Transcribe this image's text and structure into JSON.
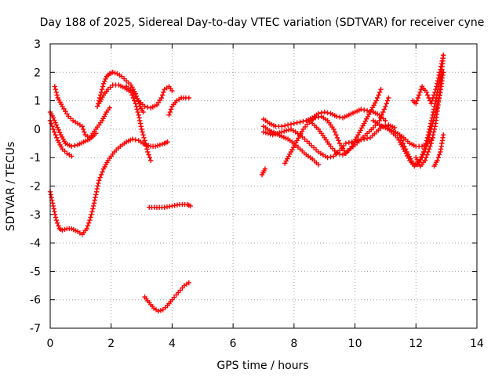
{
  "chart_data": {
    "type": "scatter",
    "title": "Day 188 of 2025, Sidereal Day-to-day VTEC variation (SDTVAR) for receiver cyne",
    "xlabel": "GPS time / hours",
    "ylabel": "SDTVAR / TECUs",
    "xlim": [
      0,
      14
    ],
    "ylim": [
      -7,
      3
    ],
    "xticks": [
      "0",
      "2",
      "4",
      "6",
      "8",
      "10",
      "12",
      "14"
    ],
    "yticks": [
      "-7",
      "-6",
      "-5",
      "-4",
      "-3",
      "-2",
      "-1",
      "0",
      "1",
      "2",
      "3"
    ],
    "grid": true,
    "marker": "+",
    "color": "#ff0000",
    "series": [
      {
        "x": [
          0.15,
          0.25,
          0.4,
          0.6,
          0.75,
          0.9,
          1.05,
          1.15,
          1.3,
          1.5,
          1.7,
          1.85,
          1.95
        ],
        "y": [
          1.5,
          1.1,
          0.8,
          0.45,
          0.3,
          0.2,
          0.1,
          -0.2,
          -0.3,
          0.0,
          0.3,
          0.6,
          0.75
        ]
      },
      {
        "x": [
          0.0,
          0.1,
          0.2,
          0.35,
          0.5,
          0.7,
          0.9,
          1.1,
          1.3,
          1.4,
          1.5
        ],
        "y": [
          0.6,
          0.4,
          0.15,
          -0.2,
          -0.5,
          -0.6,
          -0.55,
          -0.45,
          -0.35,
          -0.25,
          -0.15
        ]
      },
      {
        "x": [
          0.0,
          0.1,
          0.25,
          0.4,
          0.55,
          0.7
        ],
        "y": [
          0.3,
          0.0,
          -0.4,
          -0.7,
          -0.85,
          -0.95
        ]
      },
      {
        "x": [
          0.0,
          0.1,
          0.2,
          0.3,
          0.4,
          0.55,
          0.7,
          0.9,
          1.05,
          1.2,
          1.3,
          1.4,
          1.5,
          1.6,
          1.75,
          1.9,
          2.1,
          2.3,
          2.5,
          2.7,
          2.9,
          3.05,
          3.15,
          3.3,
          3.45,
          3.6,
          3.75,
          3.85
        ],
        "y": [
          -2.2,
          -2.7,
          -3.2,
          -3.5,
          -3.55,
          -3.5,
          -3.5,
          -3.6,
          -3.7,
          -3.5,
          -3.2,
          -2.8,
          -2.3,
          -1.8,
          -1.4,
          -1.1,
          -0.8,
          -0.6,
          -0.45,
          -0.35,
          -0.4,
          -0.5,
          -0.55,
          -0.6,
          -0.6,
          -0.55,
          -0.5,
          -0.45
        ]
      },
      {
        "x": [
          1.55,
          1.65,
          1.75,
          1.85,
          1.95,
          2.05,
          2.2,
          2.35,
          2.5,
          2.65,
          2.8,
          2.95,
          3.05
        ],
        "y": [
          0.8,
          1.2,
          1.6,
          1.85,
          1.95,
          2.0,
          1.95,
          1.85,
          1.7,
          1.55,
          1.25,
          0.8,
          0.6
        ]
      },
      {
        "x": [
          1.6,
          1.75,
          1.9,
          2.05,
          2.25,
          2.45,
          2.65,
          2.8,
          2.9,
          3.0,
          3.1,
          3.2,
          3.3
        ],
        "y": [
          0.9,
          1.2,
          1.4,
          1.55,
          1.55,
          1.45,
          1.3,
          0.9,
          0.5,
          0.0,
          -0.4,
          -0.8,
          -1.1
        ]
      },
      {
        "x": [
          2.5,
          2.7,
          2.9,
          3.1,
          3.3,
          3.5,
          3.65,
          3.75,
          3.9,
          4.0
        ],
        "y": [
          1.5,
          1.3,
          1.0,
          0.8,
          0.75,
          0.85,
          1.1,
          1.4,
          1.5,
          1.35
        ]
      },
      {
        "x": [
          3.9,
          4.0,
          4.15,
          4.3,
          4.45,
          4.55
        ],
        "y": [
          0.5,
          0.8,
          1.0,
          1.1,
          1.1,
          1.1
        ]
      },
      {
        "x": [
          3.25,
          3.5,
          3.75,
          4.0,
          4.25,
          4.5,
          4.6
        ],
        "y": [
          -2.75,
          -2.75,
          -2.75,
          -2.7,
          -2.65,
          -2.65,
          -2.7
        ]
      },
      {
        "x": [
          3.1,
          3.25,
          3.4,
          3.55,
          3.7,
          3.85,
          4.0,
          4.2,
          4.4,
          4.55
        ],
        "y": [
          -5.9,
          -6.1,
          -6.3,
          -6.4,
          -6.35,
          -6.2,
          -6.0,
          -5.75,
          -5.5,
          -5.4
        ]
      },
      {
        "x": [
          6.95,
          7.05
        ],
        "y": [
          -1.6,
          -1.4
        ]
      },
      {
        "x": [
          7.0,
          7.2,
          7.4,
          7.6,
          7.8,
          8.0,
          8.2,
          8.4,
          8.6,
          8.8,
          9.0,
          9.2,
          9.4,
          9.6,
          9.8,
          10.0,
          10.2,
          10.4,
          10.6,
          10.8,
          11.0
        ],
        "y": [
          0.35,
          0.2,
          0.1,
          0.1,
          0.15,
          0.2,
          0.25,
          0.3,
          0.4,
          0.55,
          0.6,
          0.55,
          0.45,
          0.4,
          0.5,
          0.6,
          0.7,
          0.65,
          0.6,
          0.5,
          0.3
        ]
      },
      {
        "x": [
          7.0,
          7.3,
          7.6,
          7.9,
          8.2,
          8.5,
          8.8,
          9.1,
          9.3,
          9.5,
          9.7,
          9.9,
          10.1,
          10.3,
          10.5,
          10.7,
          10.9,
          11.1,
          11.3
        ],
        "y": [
          -0.1,
          -0.2,
          -0.1,
          0.0,
          -0.2,
          -0.5,
          -0.8,
          -1.0,
          -0.95,
          -0.75,
          -0.5,
          -0.45,
          -0.4,
          -0.35,
          -0.3,
          -0.1,
          0.1,
          0.15,
          0.05
        ]
      },
      {
        "x": [
          7.0,
          7.2,
          7.4,
          7.6,
          7.8,
          8.0,
          8.2,
          8.4,
          8.6,
          8.8
        ],
        "y": [
          0.1,
          -0.05,
          -0.15,
          -0.25,
          -0.35,
          -0.5,
          -0.7,
          -0.9,
          -1.05,
          -1.25
        ]
      },
      {
        "x": [
          7.7,
          7.9,
          8.1,
          8.3,
          8.5,
          8.7,
          8.9,
          9.1,
          9.3,
          9.5,
          9.7,
          9.9,
          10.1,
          10.3,
          10.5,
          10.7,
          10.85
        ],
        "y": [
          -1.2,
          -0.8,
          -0.4,
          0.0,
          0.25,
          0.4,
          0.45,
          0.3,
          0.0,
          -0.5,
          -0.85,
          -0.6,
          -0.2,
          0.2,
          0.6,
          1.0,
          1.4
        ]
      },
      {
        "x": [
          8.6,
          8.8,
          9.0,
          9.2,
          9.4,
          9.6,
          9.8,
          10.0,
          10.2,
          10.4,
          10.6,
          10.8,
          11.0,
          11.1
        ],
        "y": [
          0.2,
          0.0,
          -0.3,
          -0.6,
          -0.85,
          -0.9,
          -0.75,
          -0.55,
          -0.35,
          -0.15,
          0.05,
          0.3,
          0.8,
          1.1
        ]
      },
      {
        "x": [
          10.6,
          10.8,
          11.0,
          11.2,
          11.4,
          11.6,
          11.8,
          12.0,
          12.2,
          12.4,
          12.55
        ],
        "y": [
          0.3,
          0.15,
          0.05,
          -0.05,
          -0.15,
          -0.3,
          -0.5,
          -0.6,
          -0.6,
          -0.5,
          -0.3
        ]
      },
      {
        "x": [
          11.0,
          11.2,
          11.4,
          11.6,
          11.8,
          11.95,
          12.1,
          12.25,
          12.4,
          12.55,
          12.7,
          12.85
        ],
        "y": [
          0.1,
          -0.1,
          -0.3,
          -0.7,
          -1.1,
          -1.3,
          -1.15,
          -0.8,
          -0.2,
          0.5,
          1.3,
          2.1
        ]
      },
      {
        "x": [
          11.5,
          11.7,
          11.9,
          12.05,
          12.2,
          12.35,
          12.5,
          12.65,
          12.8,
          12.9
        ],
        "y": [
          -0.3,
          -0.8,
          -1.2,
          -1.25,
          -1.0,
          -0.6,
          0.0,
          0.6,
          1.3,
          2.0
        ]
      },
      {
        "x": [
          11.9,
          12.0,
          12.1,
          12.2,
          12.35,
          12.5,
          12.65,
          12.8,
          12.9
        ],
        "y": [
          1.0,
          0.9,
          1.2,
          1.5,
          1.3,
          0.9,
          1.4,
          2.1,
          2.6
        ]
      },
      {
        "x": [
          12.0,
          12.15,
          12.3,
          12.5,
          12.65,
          12.8,
          12.9
        ],
        "y": [
          -1.0,
          -1.3,
          -1.1,
          -0.5,
          0.2,
          1.5,
          2.6
        ]
      },
      {
        "x": [
          12.6,
          12.7,
          12.8,
          12.85,
          12.9
        ],
        "y": [
          -1.3,
          -1.1,
          -0.8,
          -0.5,
          -0.2
        ]
      }
    ]
  }
}
